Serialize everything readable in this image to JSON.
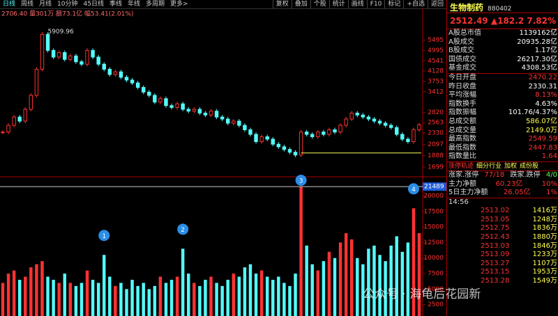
{
  "toolbar": {
    "tabs": [
      "日线",
      "周线",
      "月线",
      "10分钟",
      "45日线",
      "季线",
      "年线",
      "多周期",
      "更多>"
    ],
    "buttons": [
      "复权",
      "叠加",
      "个股",
      "统计",
      "画线",
      "F10",
      "标记",
      "+自选",
      "返回"
    ]
  },
  "chart_data": {
    "type": "candlestick",
    "info": "2706.40 量301万 额73.1亿 幅53.41(2.01%)",
    "max_label": "5909.96",
    "close": [
      2350,
      2500,
      2700,
      2600,
      2900,
      3300,
      4200,
      5800,
      5000,
      4700,
      4900,
      4600,
      4750,
      4500,
      4400,
      5000,
      4700,
      4400,
      4200,
      4000,
      4100,
      3900,
      3800,
      3700,
      3550,
      3400,
      3300,
      3100,
      3200,
      3000,
      2950,
      3050,
      2900,
      2850,
      2900,
      2800,
      2750,
      2850,
      2700,
      2650,
      2550,
      2600,
      2500,
      2400,
      2300,
      2150,
      2250,
      2200,
      2100,
      2050,
      2000,
      1950,
      1900,
      2350,
      2300,
      2250,
      2350,
      2300,
      2400,
      2350,
      2500,
      2650,
      2800,
      2750,
      2700,
      2650,
      2600,
      2550,
      2500,
      2450,
      2300,
      2200,
      2150,
      2400,
      2512.49
    ],
    "volume": [
      6000,
      7500,
      8000,
      6500,
      7000,
      8500,
      9000,
      9500,
      7000,
      6500,
      6000,
      7500,
      6000,
      5500,
      6000,
      8000,
      6500,
      6000,
      10500,
      7000,
      5500,
      6000,
      5000,
      6500,
      5500,
      6000,
      5000,
      5500,
      7000,
      6000,
      6500,
      7000,
      11500,
      7500,
      6000,
      5500,
      6500,
      7000,
      6000,
      5500,
      6500,
      7500,
      7000,
      8500,
      9000,
      7500,
      8000,
      7000,
      6500,
      7000,
      6000,
      5500,
      7500,
      21489,
      12000,
      9000,
      8000,
      9500,
      11000,
      10000,
      12500,
      14000,
      13000,
      10000,
      9000,
      11500,
      12000,
      10500,
      9500,
      12000,
      13500,
      11000,
      12500,
      18000,
      14000
    ],
    "log_scale": true,
    "ylim": [
      1594,
      6915
    ],
    "yticks": [
      1699,
      1888,
      2097,
      2330,
      2563,
      2820,
      3412,
      3753,
      4128,
      4541,
      4995,
      5495
    ],
    "vlim": [
      0,
      22400
    ],
    "vticks": [
      2500,
      5000,
      7500,
      10000,
      12500,
      15000,
      17500,
      20000
    ],
    "up_color": "#ff3232",
    "down_color": "#54fcfc",
    "markers": [
      {
        "label": "1",
        "index": 18
      },
      {
        "label": "2",
        "index": 32
      },
      {
        "label": "3",
        "index": 53
      },
      {
        "label": "4",
        "index": 73
      }
    ]
  },
  "panel": {
    "name": "生物制药",
    "code": "880402",
    "price": "2512.49",
    "change": "▲182.2",
    "pct": "7.82%",
    "stats": [
      {
        "label": "A股总市值",
        "value": "1139162亿",
        "color": "#ffffff"
      },
      {
        "label": "A股成交",
        "value": "20935.28亿",
        "color": "#ffffff"
      },
      {
        "label": "B股成交",
        "value": "1.17亿",
        "color": "#ffffff"
      },
      {
        "label": "国债成交",
        "value": "26217.30亿",
        "color": "#ffffff"
      },
      {
        "label": "基金成交",
        "value": "4308.53亿",
        "color": "#ffffff"
      },
      {
        "label": "今日开盘",
        "value": "2470.22",
        "color": "#ff3232"
      },
      {
        "label": "昨日收盘",
        "value": "2330.31",
        "color": "#ffffff"
      },
      {
        "label": "平均涨幅",
        "value": "8.13%",
        "color": "#ff3232"
      },
      {
        "label": "指数换手",
        "value": "4.63%",
        "color": "#ffffff"
      },
      {
        "label": "指数振幅",
        "value": "101.76/4.37%",
        "color": "#ffffff"
      },
      {
        "label": "总成交额",
        "value": "586.07亿",
        "color": "#ffff54"
      },
      {
        "label": "总成交量",
        "value": "2149.0万",
        "color": "#ffff54"
      },
      {
        "label": "最高指数",
        "value": "2549.59",
        "color": "#ff3232"
      },
      {
        "label": "最低指数",
        "value": "2447.83",
        "color": "#ff3232"
      },
      {
        "label": "指数量比",
        "value": "1.64",
        "color": "#ff3232"
      }
    ],
    "tabs": [
      "涨停轨迹",
      "细分行业",
      "加权",
      "成份股"
    ],
    "breadth": [
      {
        "label": "涨家.涨停",
        "value": "77/18"
      },
      {
        "label": "跌家.跌停",
        "value": "4/0"
      }
    ],
    "flows": [
      {
        "label": "主力净额",
        "value": "60.23亿",
        "pct": "10%"
      },
      {
        "label": "5日主力净额",
        "value": "26.05亿",
        "pct": "1%"
      }
    ],
    "time": "14:56",
    "ticks": [
      [
        "2513.02",
        "1416万"
      ],
      [
        "2513.05",
        "1248万"
      ],
      [
        "2512.75",
        "1836万"
      ],
      [
        "2512.43",
        "1880万"
      ],
      [
        "2513.03",
        "1846万"
      ],
      [
        "2513.09",
        "1233万"
      ],
      [
        "2513.27",
        "1107万"
      ],
      [
        "2513.15",
        "1953万"
      ],
      [
        "2513.28",
        "1549万"
      ]
    ]
  },
  "watermark": "公众号 · 海龟后花园新"
}
